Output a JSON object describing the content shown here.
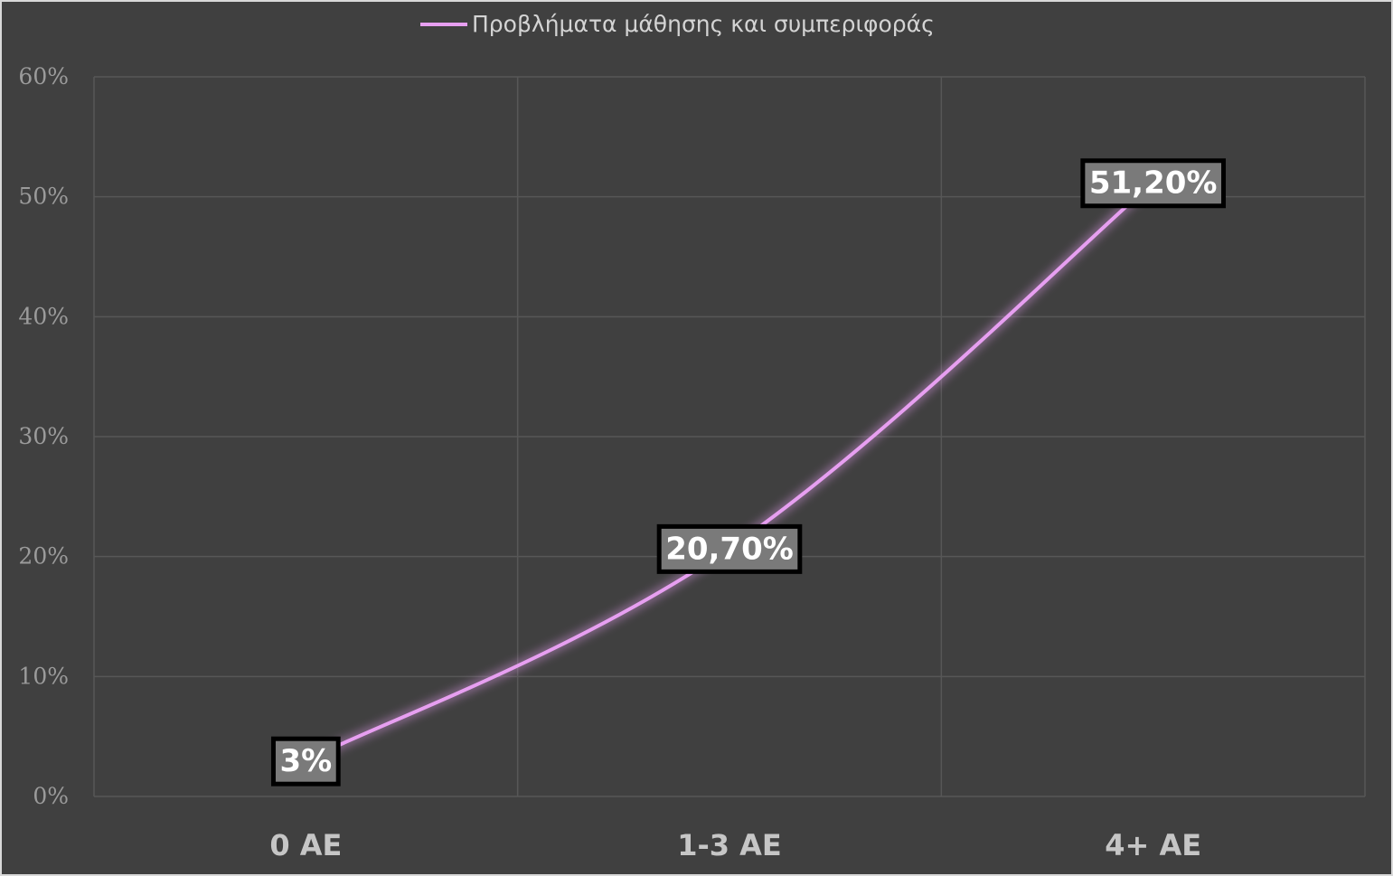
{
  "chart_data": {
    "type": "line",
    "title": "",
    "xlabel": "",
    "ylabel": "",
    "categories": [
      "0 AE",
      "1-3 AE",
      "4+ AE"
    ],
    "series": [
      {
        "name": "Προβλήματα μάθησης και συμπεριφοράς",
        "values": [
          3,
          20.7,
          51.2
        ],
        "data_labels": [
          "3%",
          "20,70%",
          "51,20%"
        ],
        "color": "#e79ff1"
      }
    ],
    "ylim": [
      0,
      60
    ],
    "yticks": [
      0,
      10,
      20,
      30,
      40,
      50,
      60
    ],
    "ytick_labels": [
      "0%",
      "10%",
      "20%",
      "30%",
      "40%",
      "50%",
      "60%"
    ],
    "grid": true,
    "legend_position": "top-center"
  },
  "colors": {
    "background": "#404040",
    "grid": "#575757",
    "series": "#e79ff1",
    "label_box": "#7a7a7a"
  }
}
